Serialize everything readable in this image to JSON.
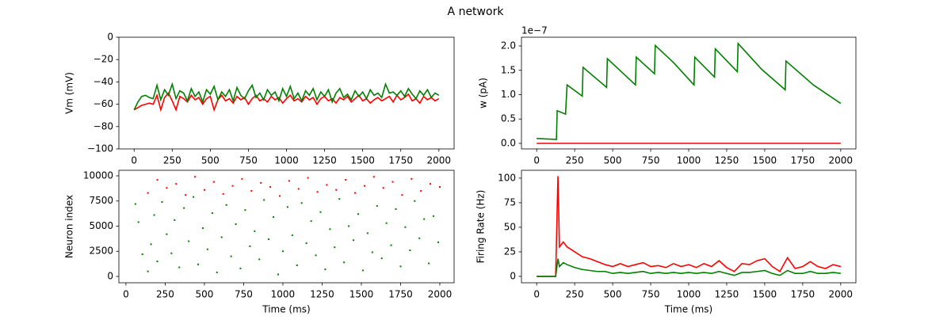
{
  "title": "A network",
  "chart_data": [
    {
      "type": "line",
      "ylabel": "Vm (mV)",
      "x": [
        0,
        25,
        50,
        75,
        100,
        125,
        150,
        175,
        200,
        225,
        250,
        275,
        300,
        325,
        350,
        375,
        400,
        425,
        450,
        475,
        500,
        525,
        550,
        575,
        600,
        625,
        650,
        675,
        700,
        725,
        750,
        775,
        800,
        825,
        850,
        875,
        900,
        925,
        950,
        975,
        1000,
        1025,
        1050,
        1075,
        1100,
        1125,
        1150,
        1175,
        1200,
        1225,
        1250,
        1275,
        1300,
        1325,
        1350,
        1375,
        1400,
        1425,
        1450,
        1475,
        1500,
        1525,
        1550,
        1575,
        1600,
        1625,
        1650,
        1675,
        1700,
        1725,
        1750,
        1775,
        1800,
        1825,
        1850,
        1875,
        1900,
        1925,
        1950,
        1975,
        2000
      ],
      "series": [
        {
          "color": "#ff0000",
          "values": [
            -65,
            -63,
            -61,
            -60,
            -59,
            -60,
            -52,
            -65,
            -54,
            -50,
            -57,
            -65,
            -53,
            -55,
            -58,
            -52,
            -56,
            -54,
            -60,
            -55,
            -53,
            -65,
            -56,
            -52,
            -57,
            -55,
            -59,
            -53,
            -56,
            -54,
            -60,
            -55,
            -52,
            -57,
            -55,
            -58,
            -53,
            -56,
            -54,
            -59,
            -55,
            -52,
            -57,
            -55,
            -58,
            -53,
            -56,
            -54,
            -60,
            -55,
            -53,
            -57,
            -55,
            -59,
            -54,
            -56,
            -53,
            -58,
            -55,
            -52,
            -57,
            -55,
            -59,
            -56,
            -54,
            -57,
            -55,
            -53,
            -58,
            -52,
            -56,
            -54,
            -51,
            -57,
            -55,
            -59,
            -53,
            -56,
            -54,
            -57,
            -55
          ]
        },
        {
          "color": "#008000",
          "values": [
            -65,
            -58,
            -53,
            -52,
            -54,
            -55,
            -43,
            -56,
            -47,
            -52,
            -42,
            -55,
            -48,
            -50,
            -57,
            -46,
            -53,
            -49,
            -58,
            -47,
            -51,
            -44,
            -56,
            -49,
            -53,
            -47,
            -57,
            -45,
            -52,
            -55,
            -48,
            -43,
            -54,
            -50,
            -56,
            -47,
            -52,
            -49,
            -57,
            -46,
            -53,
            -44,
            -55,
            -50,
            -57,
            -48,
            -52,
            -46,
            -56,
            -49,
            -53,
            -47,
            -58,
            -50,
            -46,
            -54,
            -51,
            -56,
            -48,
            -53,
            -49,
            -55,
            -47,
            -52,
            -50,
            -54,
            -42,
            -50,
            -49,
            -52,
            -48,
            -53,
            -46,
            -51,
            -55,
            -48,
            -52,
            -47,
            -54,
            -50,
            -52
          ]
        }
      ],
      "xlim": [
        -100,
        2100
      ],
      "ylim": [
        -100,
        0
      ],
      "xticks": [
        0,
        250,
        500,
        750,
        1000,
        1250,
        1500,
        1750,
        2000
      ],
      "yticks": [
        {
          "value": -100,
          "label": "−100"
        },
        {
          "value": -80,
          "label": "−80"
        },
        {
          "value": -60,
          "label": "−60"
        },
        {
          "value": -40,
          "label": "−40"
        },
        {
          "value": -20,
          "label": "−20"
        },
        0
      ]
    },
    {
      "type": "line",
      "ylabel": "w (pA)",
      "y_offset_label": "1e−7",
      "series": [
        {
          "color": "#ff0000",
          "x": [
            0,
            2000
          ],
          "values": [
            0,
            0
          ]
        },
        {
          "color": "#008000",
          "x": [
            0,
            130,
            135,
            190,
            200,
            300,
            305,
            460,
            465,
            650,
            655,
            775,
            780,
            900,
            1035,
            1040,
            1170,
            1175,
            1320,
            1325,
            1480,
            1635,
            1640,
            1820,
            2000
          ],
          "values": [
            0.1,
            0.08,
            0.67,
            0.6,
            1.2,
            0.97,
            1.56,
            1.15,
            1.74,
            1.2,
            1.77,
            1.43,
            2.01,
            1.66,
            1.2,
            1.77,
            1.36,
            1.94,
            1.47,
            2.05,
            1.52,
            1.1,
            1.69,
            1.2,
            0.82
          ]
        }
      ],
      "xlim": [
        -100,
        2100
      ],
      "ylim": [
        -0.114,
        2.179
      ],
      "xticks": [
        0,
        250,
        500,
        750,
        1000,
        1250,
        1500,
        1750,
        2000
      ],
      "yticks": [
        {
          "value": 0,
          "label": "0.0"
        },
        {
          "value": 0.5,
          "label": "0.5"
        },
        {
          "value": 1,
          "label": "1.0"
        },
        {
          "value": 1.5,
          "label": "1.5"
        },
        {
          "value": 2,
          "label": "2.0"
        }
      ]
    },
    {
      "type": "scatter",
      "xlabel": "Time (ms)",
      "ylabel": "Neuron index",
      "series": [
        {
          "color": "#008000",
          "x": [
            140,
            160,
            180,
            200,
            230,
            260,
            290,
            310,
            340,
            370,
            400,
            430,
            460,
            490,
            520,
            550,
            580,
            610,
            640,
            670,
            700,
            730,
            760,
            790,
            820,
            850,
            880,
            910,
            940,
            970,
            1000,
            1030,
            1060,
            1090,
            1120,
            1150,
            1180,
            1210,
            1240,
            1270,
            1300,
            1330,
            1360,
            1390,
            1420,
            1450,
            1480,
            1510,
            1540,
            1570,
            1600,
            1630,
            1660,
            1690,
            1720,
            1750,
            1780,
            1810,
            1840,
            1870,
            1900,
            1930,
            1960,
            1990,
            80,
            105,
            60
          ],
          "values": [
            500,
            3200,
            6100,
            1500,
            7400,
            4200,
            2300,
            5600,
            900,
            6800,
            3500,
            7900,
            1200,
            4800,
            2700,
            6300,
            400,
            3900,
            7100,
            2000,
            5200,
            800,
            6600,
            3000,
            4500,
            1700,
            7600,
            3700,
            5900,
            200,
            2500,
            6900,
            4100,
            1100,
            7300,
            3300,
            5500,
            2100,
            6400,
            700,
            4700,
            2900,
            7700,
            1400,
            5000,
            3600,
            6200,
            600,
            4300,
            2400,
            7000,
            1800,
            5300,
            3100,
            6700,
            1000,
            4900,
            2600,
            7500,
            3800,
            5700,
            1300,
            6000,
            3400,
            5400,
            2200,
            7200
          ]
        },
        {
          "color": "#ff0000",
          "x": [
            140,
            200,
            260,
            320,
            380,
            440,
            500,
            560,
            620,
            680,
            740,
            800,
            860,
            920,
            980,
            1040,
            1100,
            1160,
            1220,
            1280,
            1340,
            1400,
            1460,
            1520,
            1580,
            1640,
            1700,
            1760,
            1820,
            1880,
            1940,
            2000
          ],
          "values": [
            8300,
            9600,
            8800,
            9200,
            8100,
            9900,
            8600,
            9400,
            8200,
            9000,
            9700,
            8500,
            9300,
            8900,
            8000,
            9500,
            8700,
            9800,
            8400,
            9100,
            8600,
            9600,
            8300,
            9000,
            9900,
            8800,
            9400,
            8100,
            9700,
            8500,
            9200,
            8900
          ]
        }
      ],
      "xlim": [
        -45,
        2091
      ],
      "ylim": [
        -630,
        10551
      ],
      "xticks": [
        0,
        250,
        500,
        750,
        1000,
        1250,
        1500,
        1750,
        2000
      ],
      "yticks": [
        0,
        2500,
        5000,
        7500,
        10000
      ]
    },
    {
      "type": "line",
      "xlabel": "Time (ms)",
      "ylabel": "Firing Rate (Hz)",
      "series": [
        {
          "color": "#ff0000",
          "x": [
            0,
            125,
            140,
            150,
            175,
            200,
            250,
            300,
            350,
            400,
            450,
            500,
            550,
            600,
            650,
            700,
            750,
            800,
            850,
            900,
            950,
            1000,
            1050,
            1100,
            1150,
            1200,
            1250,
            1300,
            1350,
            1400,
            1450,
            1500,
            1550,
            1600,
            1650,
            1700,
            1750,
            1800,
            1850,
            1900,
            1950,
            2000
          ],
          "values": [
            0,
            0,
            102,
            30,
            35,
            30,
            25,
            20,
            18,
            15,
            12,
            10,
            13,
            10,
            12,
            14,
            10,
            11,
            9,
            13,
            10,
            12,
            9,
            13,
            10,
            16,
            9,
            5,
            13,
            12,
            16,
            18,
            10,
            5,
            19,
            8,
            10,
            15,
            10,
            8,
            12,
            10
          ]
        },
        {
          "color": "#008000",
          "x": [
            0,
            125,
            140,
            150,
            175,
            200,
            250,
            300,
            350,
            400,
            450,
            500,
            550,
            600,
            650,
            700,
            750,
            800,
            850,
            900,
            950,
            1000,
            1050,
            1100,
            1150,
            1200,
            1250,
            1300,
            1350,
            1400,
            1450,
            1500,
            1550,
            1600,
            1650,
            1700,
            1750,
            1800,
            1850,
            1900,
            1950,
            2000
          ],
          "values": [
            0,
            0,
            18,
            10,
            14,
            12,
            9,
            7,
            6,
            5,
            5,
            3,
            4,
            3,
            4,
            5,
            3,
            4,
            3,
            4,
            3,
            4,
            3,
            4,
            3,
            5,
            3,
            1,
            4,
            4,
            5,
            6,
            3,
            1,
            6,
            3,
            3,
            5,
            3,
            3,
            4,
            3
          ]
        }
      ],
      "xlim": [
        -100,
        2100
      ],
      "ylim": [
        -6.5,
        108
      ],
      "xticks": [
        0,
        250,
        500,
        750,
        1000,
        1250,
        1500,
        1750,
        2000
      ],
      "yticks": [
        0,
        25,
        50,
        75,
        100
      ]
    }
  ]
}
